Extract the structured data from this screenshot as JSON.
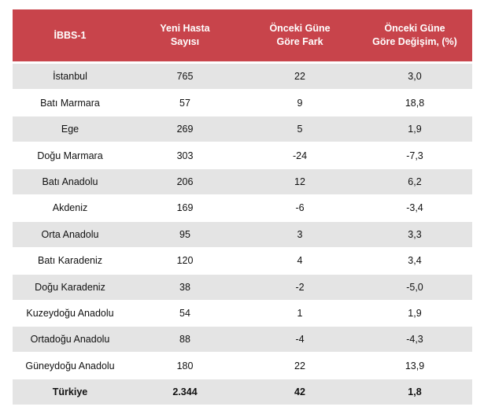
{
  "header": {
    "col1": "İBBS-1",
    "col2_line1": "Yeni Hasta",
    "col2_line2": "Sayısı",
    "col3_line1": "Önceki Güne",
    "col3_line2": "Göre Fark",
    "col4_line1": "Önceki Güne",
    "col4_line2": "Göre Değişim, (%)"
  },
  "rows": [
    {
      "region": "İstanbul",
      "cases": "765",
      "diff": "22",
      "change": "3,0"
    },
    {
      "region": "Batı Marmara",
      "cases": "57",
      "diff": "9",
      "change": "18,8"
    },
    {
      "region": "Ege",
      "cases": "269",
      "diff": "5",
      "change": "1,9"
    },
    {
      "region": "Doğu Marmara",
      "cases": "303",
      "diff": "-24",
      "change": "-7,3"
    },
    {
      "region": "Batı Anadolu",
      "cases": "206",
      "diff": "12",
      "change": "6,2"
    },
    {
      "region": "Akdeniz",
      "cases": "169",
      "diff": "-6",
      "change": "-3,4"
    },
    {
      "region": "Orta Anadolu",
      "cases": "95",
      "diff": "3",
      "change": "3,3"
    },
    {
      "region": "Batı Karadeniz",
      "cases": "120",
      "diff": "4",
      "change": "3,4"
    },
    {
      "region": "Doğu Karadeniz",
      "cases": "38",
      "diff": "-2",
      "change": "-5,0"
    },
    {
      "region": "Kuzeydoğu Anadolu",
      "cases": "54",
      "diff": "1",
      "change": "1,9"
    },
    {
      "region": "Ortadoğu Anadolu",
      "cases": "88",
      "diff": "-4",
      "change": "-4,3"
    },
    {
      "region": "Güneydoğu Anadolu",
      "cases": "180",
      "diff": "22",
      "change": "13,9"
    }
  ],
  "total": {
    "region": "Türkiye",
    "cases": "2.344",
    "diff": "42",
    "change": "1,8"
  },
  "colors": {
    "header_bg": "#c8444b",
    "shaded_row": "#e4e4e4",
    "plain_row": "#ffffff"
  }
}
